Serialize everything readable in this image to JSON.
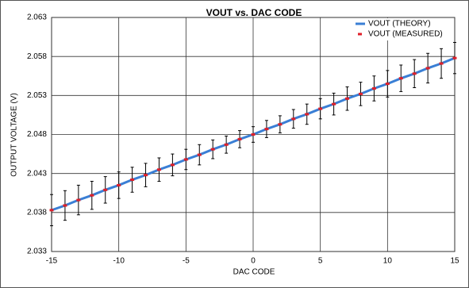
{
  "chart_data": {
    "type": "line",
    "title": "VOUT vs. DAC CODE",
    "x_label": "DAC CODE",
    "y_label": "OUTPUT VOLTAGE (V)",
    "x": [
      -15,
      -14,
      -13,
      -12,
      -11,
      -10,
      -9,
      -8,
      -7,
      -6,
      -5,
      -4,
      -3,
      -2,
      -1,
      0,
      1,
      2,
      3,
      4,
      5,
      6,
      7,
      8,
      9,
      10,
      11,
      12,
      13,
      14,
      15
    ],
    "series": [
      {
        "name": "VOUT (THEORY)",
        "color": "#3a7fd5",
        "values": [
          2.0383,
          2.0389,
          2.0396,
          2.0402,
          2.0409,
          2.0415,
          2.0422,
          2.0428,
          2.0435,
          2.0441,
          2.0448,
          2.0454,
          2.0461,
          2.0467,
          2.0474,
          2.048,
          2.0487,
          2.0493,
          2.05,
          2.0506,
          2.0513,
          2.0519,
          2.0526,
          2.0532,
          2.0539,
          2.0545,
          2.0552,
          2.0558,
          2.0565,
          2.0571,
          2.0578
        ]
      },
      {
        "name": "VOUT (MEASURED)",
        "color": "#e0202a",
        "values": [
          2.0383,
          2.0389,
          2.0396,
          2.0402,
          2.0409,
          2.0415,
          2.0422,
          2.0428,
          2.0435,
          2.0441,
          2.0448,
          2.0454,
          2.0461,
          2.0467,
          2.0474,
          2.048,
          2.0487,
          2.0493,
          2.05,
          2.0506,
          2.0513,
          2.0519,
          2.0526,
          2.0532,
          2.0539,
          2.0545,
          2.0552,
          2.0558,
          2.0565,
          2.0571,
          2.0578
        ],
        "errors": [
          0.002,
          0.0019,
          0.0019,
          0.0018,
          0.0017,
          0.0017,
          0.0016,
          0.0015,
          0.0015,
          0.0014,
          0.0013,
          0.0013,
          0.0012,
          0.0011,
          0.0011,
          0.001,
          0.0011,
          0.0011,
          0.0012,
          0.0013,
          0.0013,
          0.0014,
          0.0015,
          0.0015,
          0.0016,
          0.0017,
          0.0017,
          0.0018,
          0.0019,
          0.0019,
          0.002
        ]
      }
    ],
    "xlim": [
      -15,
      15
    ],
    "xticks": [
      -15,
      -10,
      -5,
      0,
      5,
      10,
      15
    ],
    "ylim": [
      2.033,
      2.063
    ],
    "yticks": [
      2.033,
      2.038,
      2.043,
      2.048,
      2.053,
      2.058,
      2.063
    ],
    "grid": true,
    "legend": "top-right"
  }
}
